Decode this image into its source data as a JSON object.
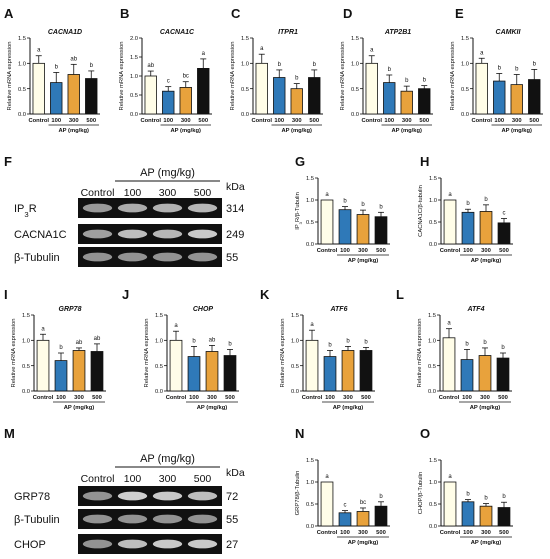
{
  "colors": {
    "control": "#fffde8",
    "dose100": "#2f79b8",
    "dose300": "#e8a23c",
    "dose500": "#111111",
    "axis": "#111111",
    "blot_bg": "#ffffff",
    "blot_band": "#3a3a3a"
  },
  "chart_data": [
    {
      "type": "bar",
      "panel": "A",
      "title": "CACNA1D",
      "ylabel": "Relative mRNA expression",
      "xlabel": "AP (mg/kg)",
      "categories": [
        "Control",
        "100",
        "300",
        "500"
      ],
      "values": [
        1.0,
        0.62,
        0.78,
        0.7
      ],
      "errors": [
        0.15,
        0.2,
        0.2,
        0.15
      ],
      "letters": [
        "a",
        "b",
        "ab",
        "b"
      ],
      "ylim": [
        0,
        1.5
      ],
      "yticks": [
        "0.0",
        "0.5",
        "1.0",
        "1.5"
      ]
    },
    {
      "type": "bar",
      "panel": "B",
      "title": "CACNA1C",
      "ylabel": "Relative mRNA expression",
      "xlabel": "AP (mg/kg)",
      "categories": [
        "Control",
        "100",
        "300",
        "500"
      ],
      "values": [
        1.0,
        0.6,
        0.7,
        1.2
      ],
      "errors": [
        0.13,
        0.12,
        0.15,
        0.25
      ],
      "letters": [
        "ab",
        "c",
        "bc",
        "a"
      ],
      "ylim": [
        0,
        2.0
      ],
      "yticks": [
        "0.0",
        "0.5",
        "1.0",
        "1.5",
        "2.0"
      ]
    },
    {
      "type": "bar",
      "panel": "C",
      "title": "ITPR1",
      "ylabel": "Relative mRNA expression",
      "xlabel": "AP (mg/kg)",
      "categories": [
        "Control",
        "100",
        "300",
        "500"
      ],
      "values": [
        1.0,
        0.72,
        0.5,
        0.72
      ],
      "errors": [
        0.18,
        0.15,
        0.1,
        0.15
      ],
      "letters": [
        "a",
        "b",
        "b",
        "b"
      ],
      "ylim": [
        0,
        1.5
      ],
      "yticks": [
        "0.0",
        "0.5",
        "1.0",
        "1.5"
      ]
    },
    {
      "type": "bar",
      "panel": "D",
      "title": "ATP2B1",
      "ylabel": "Relative mRNA expression",
      "xlabel": "AP (mg/kg)",
      "categories": [
        "Control",
        "100",
        "300",
        "500"
      ],
      "values": [
        1.0,
        0.62,
        0.45,
        0.5
      ],
      "errors": [
        0.15,
        0.15,
        0.1,
        0.06
      ],
      "letters": [
        "a",
        "b",
        "b",
        "b"
      ],
      "ylim": [
        0,
        1.5
      ],
      "yticks": [
        "0.0",
        "0.5",
        "1.0",
        "1.5"
      ]
    },
    {
      "type": "bar",
      "panel": "E",
      "title": "CAMKII",
      "ylabel": "Relative mRNA expression",
      "xlabel": "AP (mg/kg)",
      "categories": [
        "Control",
        "100",
        "300",
        "500"
      ],
      "values": [
        1.0,
        0.65,
        0.58,
        0.68
      ],
      "errors": [
        0.1,
        0.15,
        0.2,
        0.2
      ],
      "letters": [
        "a",
        "b",
        "b",
        "b"
      ],
      "ylim": [
        0,
        1.5
      ],
      "yticks": [
        "0.0",
        "0.5",
        "1.0",
        "1.5"
      ]
    },
    {
      "type": "bar",
      "panel": "G",
      "title": "",
      "ylabel": "IP3R/β-Tubulin",
      "xlabel": "AP (mg/kg)",
      "categories": [
        "Control",
        "100",
        "300",
        "500"
      ],
      "values": [
        1.0,
        0.78,
        0.67,
        0.62
      ],
      "errors": [
        0.0,
        0.07,
        0.1,
        0.1
      ],
      "letters": [
        "a",
        "b",
        "b",
        "b"
      ],
      "ylim": [
        0,
        1.5
      ],
      "yticks": [
        "0.0",
        "0.5",
        "1.0",
        "1.5"
      ]
    },
    {
      "type": "bar",
      "panel": "H",
      "title": "",
      "ylabel": "CACNA1C/β-tubulin",
      "xlabel": "AP (mg/kg)",
      "categories": [
        "Control",
        "100",
        "300",
        "500"
      ],
      "values": [
        1.0,
        0.72,
        0.74,
        0.48
      ],
      "errors": [
        0.0,
        0.07,
        0.15,
        0.1
      ],
      "letters": [
        "a",
        "b",
        "b",
        "c"
      ],
      "ylim": [
        0,
        1.5
      ],
      "yticks": [
        "0.0",
        "0.5",
        "1.0",
        "1.5"
      ]
    },
    {
      "type": "bar",
      "panel": "I",
      "title": "GRP78",
      "ylabel": "Relative mRNA expression",
      "xlabel": "AP (mg/kg)",
      "categories": [
        "Control",
        "100",
        "300",
        "500"
      ],
      "values": [
        1.0,
        0.6,
        0.8,
        0.78
      ],
      "errors": [
        0.12,
        0.15,
        0.05,
        0.15
      ],
      "letters": [
        "a",
        "b",
        "ab",
        "ab"
      ],
      "ylim": [
        0,
        1.5
      ],
      "yticks": [
        "0.0",
        "0.5",
        "1.0",
        "1.5"
      ]
    },
    {
      "type": "bar",
      "panel": "J",
      "title": "CHOP",
      "ylabel": "Relative mRNA expression",
      "xlabel": "AP (mg/kg)",
      "categories": [
        "Control",
        "100",
        "300",
        "500"
      ],
      "values": [
        1.0,
        0.68,
        0.78,
        0.7
      ],
      "errors": [
        0.18,
        0.2,
        0.12,
        0.12
      ],
      "letters": [
        "a",
        "b",
        "ab",
        "b"
      ],
      "ylim": [
        0,
        1.5
      ],
      "yticks": [
        "0.0",
        "0.5",
        "1.0",
        "1.5"
      ]
    },
    {
      "type": "bar",
      "panel": "K",
      "title": "ATF6",
      "ylabel": "Relative mRNA expression",
      "xlabel": "AP (mg/kg)",
      "categories": [
        "Control",
        "100",
        "300",
        "500"
      ],
      "values": [
        1.0,
        0.68,
        0.8,
        0.8
      ],
      "errors": [
        0.2,
        0.12,
        0.08,
        0.06
      ],
      "letters": [
        "a",
        "b",
        "b",
        "b"
      ],
      "ylim": [
        0,
        1.5
      ],
      "yticks": [
        "0.0",
        "0.5",
        "1.0",
        "1.5"
      ]
    },
    {
      "type": "bar",
      "panel": "L",
      "title": "ATF4",
      "ylabel": "Relative mRNA expression",
      "xlabel": "AP (mg/kg)",
      "categories": [
        "Control",
        "100",
        "300",
        "500"
      ],
      "values": [
        1.05,
        0.62,
        0.7,
        0.65
      ],
      "errors": [
        0.18,
        0.2,
        0.15,
        0.1
      ],
      "letters": [
        "a",
        "b",
        "b",
        "b"
      ],
      "ylim": [
        0,
        1.5
      ],
      "yticks": [
        "0.0",
        "0.5",
        "1.0",
        "1.5"
      ]
    },
    {
      "type": "bar",
      "panel": "N",
      "title": "",
      "ylabel": "GRP78/β-Tubulin",
      "xlabel": "AP (mg/kg)",
      "categories": [
        "Control",
        "100",
        "300",
        "500"
      ],
      "values": [
        1.0,
        0.3,
        0.33,
        0.45
      ],
      "errors": [
        0.0,
        0.05,
        0.08,
        0.1
      ],
      "letters": [
        "a",
        "c",
        "bc",
        "b"
      ],
      "ylim": [
        0,
        1.5
      ],
      "yticks": [
        "0.0",
        "0.5",
        "1.0",
        "1.5"
      ]
    },
    {
      "type": "bar",
      "panel": "O",
      "title": "",
      "ylabel": "CHOP/β-Tubulin",
      "xlabel": "AP (mg/kg)",
      "categories": [
        "Control",
        "100",
        "300",
        "500"
      ],
      "values": [
        1.0,
        0.55,
        0.45,
        0.42
      ],
      "errors": [
        0.0,
        0.05,
        0.06,
        0.12
      ],
      "letters": [
        "a",
        "b",
        "b",
        "b"
      ],
      "ylim": [
        0,
        1.5
      ],
      "yticks": [
        "0.0",
        "0.5",
        "1.0",
        "1.5"
      ]
    }
  ],
  "blots": [
    {
      "panel": "F",
      "header": "AP (mg/kg)",
      "lane_labels": [
        "Control",
        "100",
        "300",
        "500"
      ],
      "size_unit": "kDa",
      "rows": [
        {
          "label": "IP3R",
          "size": "314",
          "intensities": [
            0.85,
            0.7,
            0.65,
            0.6
          ]
        },
        {
          "label": "CACNA1C",
          "size": "249",
          "intensities": [
            0.8,
            0.55,
            0.6,
            0.45
          ]
        },
        {
          "label": "β-Tubulin",
          "size": "55",
          "intensities": [
            0.9,
            0.9,
            0.9,
            0.9
          ]
        }
      ]
    },
    {
      "panel": "M",
      "header": "AP (mg/kg)",
      "lane_labels": [
        "Control",
        "100",
        "300",
        "500"
      ],
      "size_unit": "kDa",
      "rows": [
        {
          "label": "GRP78",
          "size": "72",
          "intensities": [
            0.9,
            0.4,
            0.45,
            0.55
          ]
        },
        {
          "label": "β-Tubulin",
          "size": "55",
          "intensities": [
            0.9,
            0.9,
            0.9,
            0.9
          ]
        },
        {
          "label": "CHOP",
          "size": "27",
          "intensities": [
            0.9,
            0.55,
            0.45,
            0.45
          ]
        }
      ]
    }
  ]
}
